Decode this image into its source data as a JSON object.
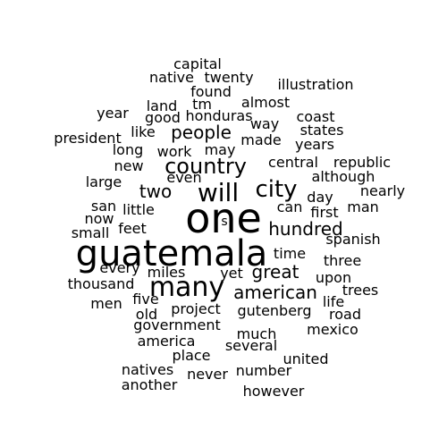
{
  "word_cloud": {
    "text_color": "#000000",
    "background_color": "#ffffff",
    "words": [
      "capital",
      "native",
      "twenty",
      "illustration",
      "found",
      "land",
      "tm",
      "almost",
      "year",
      "good",
      "honduras",
      "way",
      "coast",
      "president",
      "like",
      "people",
      "made",
      "states",
      "long",
      "work",
      "may",
      "years",
      "new",
      "country",
      "central",
      "republic",
      "even",
      "although",
      "large",
      "two",
      "will",
      "city",
      "nearly",
      "day",
      "san",
      "little",
      "can",
      "first",
      "man",
      "now",
      "one",
      "s",
      "small",
      "feet",
      "hundred",
      "spanish",
      "guatemala",
      "time",
      "three",
      "every",
      "miles",
      "yet",
      "great",
      "upon",
      "thousand",
      "many",
      "trees",
      "american",
      "five",
      "men",
      "life",
      "old",
      "project",
      "gutenberg",
      "road",
      "government",
      "mexico",
      "much",
      "america",
      "several",
      "place",
      "united",
      "natives",
      "never",
      "number",
      "another",
      "however"
    ]
  }
}
